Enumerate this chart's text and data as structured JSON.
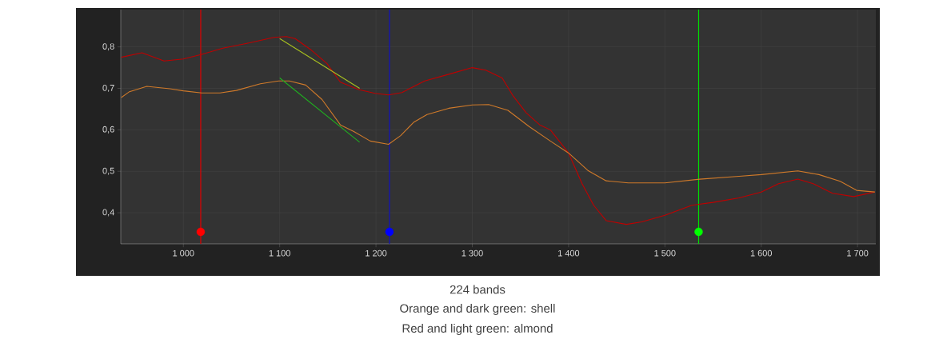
{
  "chart_data": {
    "type": "line",
    "xlim": [
      935,
      1719
    ],
    "ylim": [
      0.325,
      0.89
    ],
    "xticks": [
      {
        "value": 1000,
        "label": "1 000"
      },
      {
        "value": 1100,
        "label": "1 100"
      },
      {
        "value": 1200,
        "label": "1 200"
      },
      {
        "value": 1300,
        "label": "1 300"
      },
      {
        "value": 1400,
        "label": "1 400"
      },
      {
        "value": 1500,
        "label": "1 500"
      },
      {
        "value": 1600,
        "label": "1 600"
      },
      {
        "value": 1700,
        "label": "1 700"
      }
    ],
    "yticks": [
      {
        "value": 0.4,
        "label": "0,4"
      },
      {
        "value": 0.5,
        "label": "0,5"
      },
      {
        "value": 0.6,
        "label": "0,6"
      },
      {
        "value": 0.7,
        "label": "0,7"
      },
      {
        "value": 0.8,
        "label": "0,8"
      }
    ],
    "grid": true,
    "series": [
      {
        "color": "#c00000",
        "x": [
          935.5,
          957,
          980,
          1000,
          1019,
          1041,
          1069,
          1094,
          1107,
          1116,
          1133,
          1149,
          1163,
          1182,
          1199,
          1213,
          1227,
          1250.6,
          1275.6,
          1300,
          1314,
          1331,
          1342,
          1356,
          1370,
          1381,
          1400,
          1414,
          1426,
          1439,
          1460,
          1476,
          1500,
          1528,
          1550,
          1577,
          1600,
          1618,
          1638,
          1654,
          1674,
          1696,
          1718
        ],
        "values": [
          0.775,
          0.786,
          0.766,
          0.771,
          0.782,
          0.797,
          0.81,
          0.823,
          0.825,
          0.82,
          0.792,
          0.76,
          0.715,
          0.697,
          0.688,
          0.684,
          0.69,
          0.718,
          0.734,
          0.75,
          0.744,
          0.725,
          0.683,
          0.641,
          0.612,
          0.6,
          0.544,
          0.47,
          0.418,
          0.381,
          0.372,
          0.378,
          0.394,
          0.418,
          0.425,
          0.436,
          0.45,
          0.47,
          0.481,
          0.47,
          0.447,
          0.439,
          0.45
        ]
      },
      {
        "color": "#d07a2a",
        "x": [
          935.5,
          944,
          962,
          986,
          1000,
          1019,
          1038,
          1055,
          1080,
          1099,
          1110,
          1127,
          1144,
          1163,
          1177,
          1194,
          1213,
          1225.6,
          1239,
          1253,
          1275.6,
          1300,
          1317,
          1337,
          1359,
          1381,
          1400,
          1420,
          1439,
          1462,
          1500,
          1536,
          1577,
          1600,
          1638,
          1660,
          1682,
          1699,
          1718
        ],
        "values": [
          0.678,
          0.692,
          0.705,
          0.699,
          0.694,
          0.689,
          0.689,
          0.695,
          0.711,
          0.718,
          0.718,
          0.708,
          0.673,
          0.612,
          0.596,
          0.573,
          0.565,
          0.586,
          0.618,
          0.637,
          0.652,
          0.66,
          0.661,
          0.647,
          0.608,
          0.573,
          0.544,
          0.502,
          0.477,
          0.472,
          0.472,
          0.481,
          0.488,
          0.492,
          0.501,
          0.492,
          0.476,
          0.454,
          0.45
        ]
      },
      {
        "color": "#a8c020",
        "x": [
          1100,
          1183
        ],
        "values": [
          0.82,
          0.7
        ]
      },
      {
        "color": "#20b020",
        "x": [
          1100,
          1183
        ],
        "values": [
          0.725,
          0.57
        ]
      },
      {
        "type": "scatter",
        "marker": "circle",
        "x": [
          1018,
          1214,
          1535
        ],
        "values": [
          0.354,
          0.354,
          0.354
        ],
        "colors": [
          "#ff0000",
          "#0000ff",
          "#00ff00"
        ]
      }
    ],
    "ref_lines": [
      {
        "axis": "x",
        "value": 1018,
        "color": "#e00000"
      },
      {
        "axis": "x",
        "value": 1214,
        "color": "#1010c0"
      },
      {
        "axis": "x",
        "value": 1535,
        "color": "#00e000"
      }
    ],
    "annotations": [
      "224 bands",
      "Orange and dark green: shell",
      "Red and light green: almond"
    ]
  }
}
